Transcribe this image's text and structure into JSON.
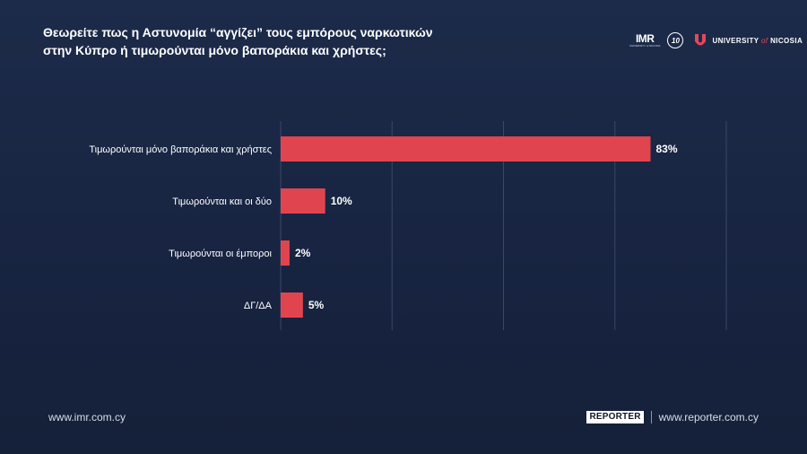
{
  "header": {
    "title_line1": "Θεωρείτε πως η Αστυνομία “αγγίζει” τους εμπόρους ναρκωτικών",
    "title_line2": "στην Κύπρο ή τιμωρούνται μόνο βαποράκια και χρήστες;"
  },
  "logos": {
    "imr": "IMR",
    "imr_sub": "UNIVERSITY of NICOSIA",
    "years": "10",
    "unic_pre": "UNIVERSITY",
    "unic_of": "of",
    "unic_post": "NICOSIA"
  },
  "chart_data": {
    "type": "bar",
    "orientation": "horizontal",
    "categories": [
      "Τιμωρούνται μόνο βαποράκια και χρήστες",
      "Τιμωρούνται και οι δύο",
      "Τιμωρούνται οι έμποροι",
      "ΔΓ/ΔΑ"
    ],
    "values": [
      83,
      10,
      2,
      5
    ],
    "value_labels": [
      "83%",
      "10%",
      "2%",
      "5%"
    ],
    "xlim": [
      0,
      100
    ],
    "grid": true,
    "bar_color": "#e0454f",
    "title": "",
    "xlabel": "",
    "ylabel": ""
  },
  "footer": {
    "left_url": "www.imr.com.cy",
    "reporter_logo": "REPORTER",
    "right_url": "www.reporter.com.cy"
  },
  "colors": {
    "background": "#182543",
    "accent": "#e0454f",
    "grid": "#3a4766"
  }
}
